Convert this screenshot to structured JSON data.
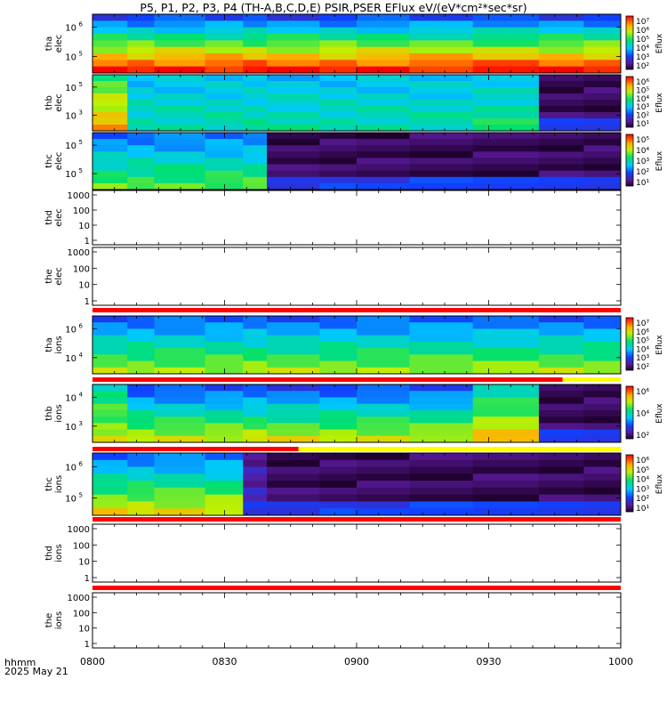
{
  "title": "P5, P1, P2, P3, P4 (TH-A,B,C,D,E) PSIR,PSER EFlux eV/(eV*cm²*sec*sr)",
  "footer": {
    "time_label": "hhmm",
    "date_label": "2025 May 21"
  },
  "x_ticks": [
    "0800",
    "0830",
    "0900",
    "0930",
    "1000"
  ],
  "colors": {
    "bar_red": "#ff0000",
    "bar_yellow": "#ffff00",
    "axis": "#000000"
  },
  "chart_data": [
    {
      "type": "heatmap",
      "name": "tha_elec",
      "ylabel": [
        "tha",
        "elec"
      ],
      "scale": "log",
      "yticks": [
        {
          "base": "10",
          "exp": "6"
        },
        {
          "base": "10",
          "exp": "5"
        }
      ],
      "colorbar": {
        "label": "Eflux",
        "ticks": [
          "10⁷",
          "10⁶",
          "10⁵",
          "10⁴",
          "10³",
          "10²"
        ]
      }
    },
    {
      "type": "heatmap",
      "name": "thb_elec",
      "ylabel": [
        "thb",
        "elec"
      ],
      "scale": "log",
      "yticks": [
        {
          "base": "10",
          "exp": "5"
        },
        {
          "base": "10",
          "exp": "3"
        }
      ],
      "colorbar": {
        "label": "Eflux",
        "ticks": [
          "10⁶",
          "10⁵",
          "10⁴",
          "10³",
          "10²",
          "10¹"
        ]
      }
    },
    {
      "type": "heatmap",
      "name": "thc_elec",
      "ylabel": [
        "thc",
        "elec"
      ],
      "scale": "log",
      "yticks": [
        {
          "base": "10",
          "exp": "5"
        },
        {
          "base": "10",
          "exp": "5"
        }
      ],
      "colorbar": {
        "label": "Eflux",
        "ticks": [
          "10⁵",
          "10⁴",
          "10³",
          "10²",
          "10¹"
        ]
      }
    },
    {
      "type": "line",
      "name": "thd_elec",
      "ylabel": [
        "thd",
        "elec"
      ],
      "scale": "log",
      "yticks": [
        {
          "label": "1000"
        },
        {
          "label": "100"
        },
        {
          "label": "10"
        },
        {
          "label": "1"
        }
      ]
    },
    {
      "type": "line",
      "name": "the_elec",
      "ylabel": [
        "the",
        "elec"
      ],
      "scale": "log",
      "yticks": [
        {
          "label": "1000"
        },
        {
          "label": "100"
        },
        {
          "label": "10"
        },
        {
          "label": "1"
        }
      ]
    },
    {
      "type": "heatmap",
      "name": "tha_ions",
      "ylabel": [
        "tha",
        "ions"
      ],
      "scale": "log",
      "yticks": [
        {
          "base": "10",
          "exp": "6"
        },
        {
          "base": "10",
          "exp": "4"
        }
      ],
      "colorbar": {
        "label": "Eflux",
        "ticks": [
          "10⁷",
          "10⁶",
          "10⁵",
          "10⁴",
          "10³",
          "10²"
        ]
      }
    },
    {
      "type": "heatmap",
      "name": "thb_ions",
      "ylabel": [
        "thb",
        "ions"
      ],
      "scale": "log",
      "yticks": [
        {
          "base": "10",
          "exp": "4"
        },
        {
          "base": "10",
          "exp": "3"
        }
      ],
      "colorbar": {
        "label": "Eflux",
        "ticks": [
          "10⁶",
          "10⁴",
          "10²"
        ]
      }
    },
    {
      "type": "heatmap",
      "name": "thc_ions",
      "ylabel": [
        "thc",
        "ions"
      ],
      "scale": "log",
      "yticks": [
        {
          "base": "10",
          "exp": "6"
        },
        {
          "base": "10",
          "exp": "5"
        }
      ],
      "colorbar": {
        "label": "Eflux",
        "ticks": [
          "10⁶",
          "10⁵",
          "10⁴",
          "10³",
          "10²",
          "10¹"
        ]
      }
    },
    {
      "type": "line",
      "name": "thd_ions",
      "ylabel": [
        "thd",
        "ions"
      ],
      "scale": "log",
      "yticks": [
        {
          "label": "1000"
        },
        {
          "label": "100"
        },
        {
          "label": "10"
        },
        {
          "label": "1"
        }
      ]
    },
    {
      "type": "line",
      "name": "the_ions",
      "ylabel": [
        "the",
        "ions"
      ],
      "scale": "log",
      "yticks": [
        {
          "label": "1000"
        },
        {
          "label": "100"
        },
        {
          "label": "10"
        },
        {
          "label": "1"
        }
      ]
    }
  ]
}
